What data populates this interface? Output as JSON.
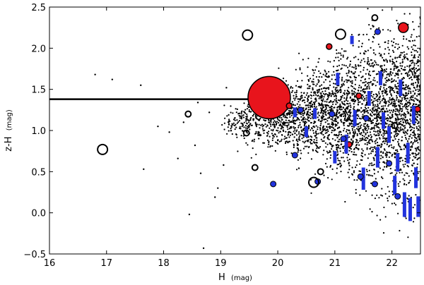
{
  "chart_data": {
    "type": "scatter",
    "xlabel": "H",
    "xlabel_unit": "(mag)",
    "ylabel": "z-H",
    "ylabel_unit": "(mag)",
    "xlim": [
      16,
      22.5
    ],
    "ylim": [
      -0.5,
      2.5
    ],
    "xticks": [
      16,
      17,
      18,
      19,
      20,
      21,
      22
    ],
    "xtick_labels": [
      "16",
      "17",
      "18",
      "19",
      "20",
      "21",
      "22"
    ],
    "yticks": [
      -0.5,
      0.0,
      0.5,
      1.0,
      1.5,
      2.0,
      2.5
    ],
    "ytick_labels": [
      "−0.5",
      "0.0",
      "0.5",
      "1.0",
      "1.5",
      "2.0",
      "2.5"
    ],
    "grid": false,
    "colors": {
      "points": "#000000",
      "red_fill": "#e8141c",
      "blue_fill": "#2233dd",
      "reference_line": "#000000"
    },
    "reference_line": {
      "y": 1.38,
      "x_start": 16.0,
      "x_end": 20.0
    },
    "sparse_points": [
      [
        16.8,
        1.68
      ],
      [
        17.6,
        1.55
      ],
      [
        17.65,
        0.53
      ],
      [
        17.1,
        1.62
      ],
      [
        18.45,
        -0.02
      ],
      [
        18.65,
        0.48
      ],
      [
        18.1,
        0.98
      ],
      [
        18.7,
        -0.43
      ],
      [
        18.9,
        0.19
      ],
      [
        18.95,
        0.3
      ],
      [
        18.55,
        0.82
      ],
      [
        18.35,
        1.1
      ],
      [
        18.8,
        1.22
      ],
      [
        19.1,
        1.52
      ],
      [
        19.05,
        0.58
      ],
      [
        18.6,
        1.34
      ],
      [
        17.9,
        1.05
      ],
      [
        18.25,
        0.66
      ]
    ],
    "dense_cloud": {
      "x_range": [
        19.0,
        22.5
      ],
      "y_center": 1.1,
      "y_spread_at_faint_end": 1.35,
      "point_count_estimate": 3400
    },
    "open_circles": [
      {
        "x": 16.93,
        "y": 0.77,
        "size": "medium"
      },
      {
        "x": 18.43,
        "y": 1.2,
        "size": "small"
      },
      {
        "x": 19.47,
        "y": 2.16,
        "size": "medium"
      },
      {
        "x": 19.45,
        "y": 0.97,
        "size": "small"
      },
      {
        "x": 19.6,
        "y": 0.55,
        "size": "small"
      },
      {
        "x": 20.63,
        "y": 0.37,
        "size": "medium"
      },
      {
        "x": 21.1,
        "y": 2.17,
        "size": "medium"
      },
      {
        "x": 20.75,
        "y": 0.5,
        "size": "small"
      },
      {
        "x": 21.7,
        "y": 2.37,
        "size": "small"
      },
      {
        "x": 22.05,
        "y": 1.06,
        "size": "small"
      }
    ],
    "red_markers": [
      {
        "x": 19.85,
        "y": 1.4,
        "size": "large"
      },
      {
        "x": 22.2,
        "y": 2.25,
        "size": "medium"
      },
      {
        "x": 20.9,
        "y": 2.02,
        "size": "small"
      },
      {
        "x": 21.25,
        "y": 0.83,
        "size": "small"
      },
      {
        "x": 21.42,
        "y": 1.42,
        "size": "small"
      },
      {
        "x": 22.45,
        "y": 1.26,
        "size": "small"
      },
      {
        "x": 20.2,
        "y": 1.3,
        "size": "small"
      }
    ],
    "blue_markers": [
      {
        "x": 19.92,
        "y": 0.35,
        "size": "small"
      },
      {
        "x": 20.3,
        "y": 0.7,
        "size": "small"
      },
      {
        "x": 20.7,
        "y": 0.38,
        "size": "small"
      },
      {
        "x": 21.15,
        "y": 0.9,
        "size": "small"
      },
      {
        "x": 21.45,
        "y": 0.44,
        "size": "small"
      },
      {
        "x": 21.7,
        "y": 0.35,
        "size": "small"
      },
      {
        "x": 21.95,
        "y": 0.6,
        "size": "small"
      },
      {
        "x": 22.1,
        "y": 0.2,
        "size": "small"
      },
      {
        "x": 20.95,
        "y": 1.2,
        "size": "small"
      },
      {
        "x": 21.55,
        "y": 1.15,
        "size": "small"
      },
      {
        "x": 21.75,
        "y": 2.2,
        "size": "small"
      },
      {
        "x": 20.4,
        "y": 1.25,
        "size": "small"
      }
    ],
    "blue_bars": [
      {
        "x": 20.3,
        "y_low": 1.16,
        "y_high": 1.28
      },
      {
        "x": 20.65,
        "y_low": 1.14,
        "y_high": 1.27
      },
      {
        "x": 21.0,
        "y_low": 0.6,
        "y_high": 0.75
      },
      {
        "x": 21.2,
        "y_low": 0.72,
        "y_high": 0.95
      },
      {
        "x": 21.35,
        "y_low": 1.05,
        "y_high": 1.25
      },
      {
        "x": 21.5,
        "y_low": 0.28,
        "y_high": 0.55
      },
      {
        "x": 21.6,
        "y_low": 1.3,
        "y_high": 1.48
      },
      {
        "x": 21.75,
        "y_low": 0.55,
        "y_high": 0.8
      },
      {
        "x": 21.85,
        "y_low": 1.02,
        "y_high": 1.22
      },
      {
        "x": 21.95,
        "y_low": 0.85,
        "y_high": 1.05
      },
      {
        "x": 22.05,
        "y_low": 0.22,
        "y_high": 0.45
      },
      {
        "x": 22.1,
        "y_low": 0.5,
        "y_high": 0.72
      },
      {
        "x": 22.15,
        "y_low": 1.42,
        "y_high": 1.62
      },
      {
        "x": 22.22,
        "y_low": -0.05,
        "y_high": 0.25
      },
      {
        "x": 22.28,
        "y_low": 0.6,
        "y_high": 0.85
      },
      {
        "x": 22.32,
        "y_low": -0.1,
        "y_high": 0.18
      },
      {
        "x": 22.38,
        "y_low": 1.08,
        "y_high": 1.3
      },
      {
        "x": 22.42,
        "y_low": 0.3,
        "y_high": 0.55
      },
      {
        "x": 22.46,
        "y_low": -0.05,
        "y_high": 0.2
      },
      {
        "x": 21.3,
        "y_low": 2.05,
        "y_high": 2.15
      },
      {
        "x": 21.05,
        "y_low": 1.55,
        "y_high": 1.7
      },
      {
        "x": 21.8,
        "y_low": 1.55,
        "y_high": 1.72
      },
      {
        "x": 20.5,
        "y_low": 0.92,
        "y_high": 1.05
      }
    ]
  }
}
